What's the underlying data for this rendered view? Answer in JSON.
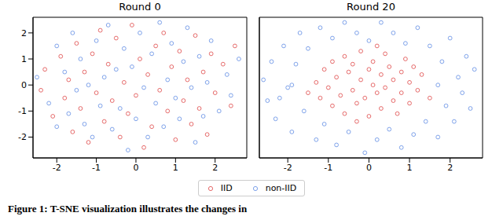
{
  "chart_data": [
    {
      "type": "scatter",
      "title": "Round 0",
      "xlim": [
        -2.6,
        2.8
      ],
      "ylim": [
        -2.8,
        2.6
      ],
      "xticks": [
        -2,
        -1,
        0,
        1,
        2
      ],
      "yticks": [
        -2,
        -1,
        0,
        1,
        2
      ],
      "series": [
        {
          "name": "IID",
          "color": "#e66a6a",
          "marker": "hollow_circle",
          "values": [
            [
              -2.4,
              -0.2
            ],
            [
              -2.3,
              0.6
            ],
            [
              -2.1,
              -1.2
            ],
            [
              -1.9,
              1.1
            ],
            [
              -1.8,
              -0.5
            ],
            [
              -1.7,
              0.2
            ],
            [
              -1.6,
              -1.8
            ],
            [
              -1.5,
              1.6
            ],
            [
              -1.4,
              -0.9
            ],
            [
              -1.3,
              0.5
            ],
            [
              -1.2,
              -2.2
            ],
            [
              -1.1,
              1.2
            ],
            [
              -1.0,
              -0.3
            ],
            [
              -0.9,
              2.1
            ],
            [
              -0.8,
              -1.4
            ],
            [
              -0.7,
              0.8
            ],
            [
              -0.6,
              -0.6
            ],
            [
              -0.5,
              1.8
            ],
            [
              -0.4,
              -2.0
            ],
            [
              -0.3,
              0.1
            ],
            [
              -0.2,
              -1.1
            ],
            [
              -0.1,
              2.3
            ],
            [
              0.0,
              -0.4
            ],
            [
              0.1,
              1.0
            ],
            [
              0.2,
              -2.4
            ],
            [
              0.3,
              0.4
            ],
            [
              0.4,
              -1.6
            ],
            [
              0.5,
              1.5
            ],
            [
              0.6,
              -0.2
            ],
            [
              0.7,
              2.0
            ],
            [
              0.8,
              -1.0
            ],
            [
              0.9,
              0.7
            ],
            [
              1.0,
              -2.1
            ],
            [
              1.1,
              1.3
            ],
            [
              1.2,
              -0.6
            ],
            [
              1.3,
              0.2
            ],
            [
              1.4,
              -1.5
            ],
            [
              1.5,
              1.9
            ],
            [
              1.6,
              -0.9
            ],
            [
              1.7,
              0.5
            ],
            [
              1.8,
              -1.9
            ],
            [
              1.9,
              1.2
            ],
            [
              2.0,
              -0.3
            ],
            [
              2.2,
              0.8
            ],
            [
              2.4,
              -0.8
            ],
            [
              2.5,
              1.5
            ]
          ]
        },
        {
          "name": "non-IID",
          "color": "#7ea2ea",
          "marker": "hollow_circle",
          "values": [
            [
              -2.5,
              0.3
            ],
            [
              -2.2,
              -0.7
            ],
            [
              -2.0,
              1.5
            ],
            [
              -2.0,
              -1.6
            ],
            [
              -1.8,
              0.5
            ],
            [
              -1.7,
              -1.1
            ],
            [
              -1.6,
              2.0
            ],
            [
              -1.5,
              -0.2
            ],
            [
              -1.4,
              1.0
            ],
            [
              -1.3,
              -1.5
            ],
            [
              -1.2,
              0.0
            ],
            [
              -1.1,
              -2.0
            ],
            [
              -1.0,
              1.7
            ],
            [
              -0.9,
              -0.8
            ],
            [
              -0.8,
              0.3
            ],
            [
              -0.7,
              2.3
            ],
            [
              -0.6,
              -1.7
            ],
            [
              -0.5,
              0.6
            ],
            [
              -0.4,
              -0.9
            ],
            [
              -0.3,
              1.4
            ],
            [
              -0.2,
              -2.5
            ],
            [
              -0.1,
              0.7
            ],
            [
              0.0,
              -1.3
            ],
            [
              0.1,
              2.0
            ],
            [
              0.2,
              -0.1
            ],
            [
              0.3,
              -2.0
            ],
            [
              0.4,
              1.2
            ],
            [
              0.5,
              -0.7
            ],
            [
              0.6,
              2.4
            ],
            [
              0.7,
              -1.6
            ],
            [
              0.8,
              0.2
            ],
            [
              0.9,
              1.6
            ],
            [
              1.0,
              -0.5
            ],
            [
              1.1,
              -1.3
            ],
            [
              1.2,
              0.9
            ],
            [
              1.3,
              2.2
            ],
            [
              1.4,
              -0.1
            ],
            [
              1.5,
              -2.2
            ],
            [
              1.6,
              1.1
            ],
            [
              1.7,
              -1.2
            ],
            [
              1.8,
              0.1
            ],
            [
              1.9,
              1.7
            ],
            [
              2.1,
              -1.0
            ],
            [
              2.3,
              0.4
            ],
            [
              2.4,
              -0.4
            ],
            [
              2.6,
              1.0
            ]
          ]
        }
      ]
    },
    {
      "type": "scatter",
      "title": "Round 20",
      "xlim": [
        -2.7,
        2.8
      ],
      "ylim": [
        -2.8,
        2.6
      ],
      "xticks": [
        -2,
        -1,
        0,
        1,
        2
      ],
      "yticks": [
        -2,
        -1,
        0,
        1,
        2
      ],
      "tick_labels": "x",
      "series": [
        {
          "name": "IID",
          "color": "#e66a6a",
          "marker": "hollow_circle",
          "values": [
            [
              -1.3,
              0.1
            ],
            [
              -1.2,
              -0.5
            ],
            [
              -1.1,
              0.6
            ],
            [
              -1.0,
              -0.1
            ],
            [
              -0.9,
              0.9
            ],
            [
              -0.9,
              -0.8
            ],
            [
              -0.8,
              0.3
            ],
            [
              -0.7,
              -0.4
            ],
            [
              -0.6,
              1.1
            ],
            [
              -0.6,
              -1.1
            ],
            [
              -0.5,
              0.5
            ],
            [
              -0.4,
              -0.2
            ],
            [
              -0.4,
              0.8
            ],
            [
              -0.3,
              -0.7
            ],
            [
              -0.2,
              0.2
            ],
            [
              -0.2,
              1.3
            ],
            [
              -0.1,
              -0.5
            ],
            [
              0.0,
              0.6
            ],
            [
              0.0,
              -1.2
            ],
            [
              0.1,
              0.0
            ],
            [
              0.1,
              0.9
            ],
            [
              0.2,
              -0.3
            ],
            [
              0.3,
              0.4
            ],
            [
              0.3,
              -0.9
            ],
            [
              0.4,
              1.2
            ],
            [
              0.4,
              -0.1
            ],
            [
              0.5,
              0.7
            ],
            [
              0.6,
              -0.6
            ],
            [
              0.6,
              0.2
            ],
            [
              0.7,
              -1.1
            ],
            [
              0.8,
              0.5
            ],
            [
              0.8,
              -0.3
            ],
            [
              0.9,
              1.0
            ],
            [
              1.0,
              -0.7
            ],
            [
              1.0,
              0.1
            ],
            [
              1.1,
              0.7
            ],
            [
              1.2,
              -0.2
            ],
            [
              1.3,
              0.4
            ],
            [
              -1.5,
              -0.3
            ],
            [
              1.5,
              -0.5
            ],
            [
              -0.3,
              -1.4
            ],
            [
              0.2,
              1.5
            ]
          ]
        },
        {
          "name": "non-IID",
          "color": "#7ea2ea",
          "marker": "hollow_circle",
          "values": [
            [
              -2.6,
              0.2
            ],
            [
              -2.5,
              -0.6
            ],
            [
              -2.4,
              0.9
            ],
            [
              -2.3,
              -1.3
            ],
            [
              -2.1,
              1.5
            ],
            [
              -2.0,
              -0.1
            ],
            [
              -1.9,
              -1.8
            ],
            [
              -1.8,
              0.8
            ],
            [
              -1.7,
              2.0
            ],
            [
              -1.6,
              -1.0
            ],
            [
              -1.5,
              1.4
            ],
            [
              -1.3,
              -2.1
            ],
            [
              -1.2,
              2.2
            ],
            [
              -1.1,
              -1.5
            ],
            [
              -0.9,
              1.8
            ],
            [
              -0.8,
              -2.3
            ],
            [
              -0.6,
              2.4
            ],
            [
              -0.5,
              -1.8
            ],
            [
              -0.3,
              2.0
            ],
            [
              -0.1,
              -2.6
            ],
            [
              0.0,
              1.7
            ],
            [
              0.2,
              -2.1
            ],
            [
              0.3,
              2.4
            ],
            [
              0.5,
              -1.7
            ],
            [
              0.6,
              2.0
            ],
            [
              0.8,
              -2.4
            ],
            [
              0.9,
              1.6
            ],
            [
              1.1,
              -1.9
            ],
            [
              1.2,
              2.2
            ],
            [
              1.4,
              -1.4
            ],
            [
              1.5,
              1.5
            ],
            [
              1.7,
              -2.0
            ],
            [
              1.8,
              0.9
            ],
            [
              1.9,
              -0.8
            ],
            [
              2.0,
              1.8
            ],
            [
              2.1,
              -1.4
            ],
            [
              2.2,
              0.3
            ],
            [
              2.3,
              -0.3
            ],
            [
              2.4,
              1.1
            ],
            [
              2.5,
              -0.9
            ],
            [
              2.6,
              0.6
            ],
            [
              -1.9,
              0.0
            ],
            [
              1.7,
              0.0
            ],
            [
              -2.2,
              -0.5
            ]
          ]
        }
      ]
    }
  ],
  "legend": "bottom",
  "caption": "Figure 1: T-SNE visualization illustrates the changes in"
}
